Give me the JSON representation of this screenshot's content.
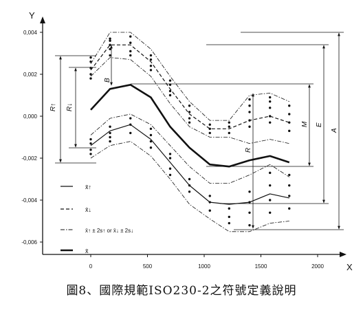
{
  "caption": "圖8、國際規範ISO230-2之符號定義說明",
  "chart_data": {
    "type": "line",
    "title": "",
    "xlabel": "X",
    "ylabel": "Y",
    "xlim": [
      -400,
      2200
    ],
    "ylim": [
      -0.0062,
      0.0042
    ],
    "x_ticks": [
      0,
      500,
      1000,
      1500,
      2000
    ],
    "x_tick_labels": [
      "0",
      "500",
      "1000",
      "1500",
      "2000"
    ],
    "y_ticks": [
      0.004,
      0.002,
      0.0,
      -0.002,
      -0.004,
      -0.006
    ],
    "y_tick_labels": [
      "0,004",
      "0,002",
      "0,000",
      "-0,002",
      "-0,004",
      "-0,006"
    ],
    "grid": false,
    "legend_position": "bottom-left",
    "positions": [
      0,
      170,
      350,
      530,
      700,
      870,
      1050,
      1220,
      1400,
      1580,
      1750
    ],
    "series": [
      {
        "name": "x̄↑",
        "style": "solid-thin",
        "values": [
          -0.0014,
          -0.0007,
          -0.0004,
          -0.0011,
          -0.0022,
          -0.0033,
          -0.0041,
          -0.0042,
          -0.0041,
          -0.0037,
          -0.0039
        ]
      },
      {
        "name": "x̄↓",
        "style": "dashed",
        "values": [
          0.0022,
          0.0034,
          0.0034,
          0.0026,
          0.0013,
          0.0001,
          -0.0006,
          -0.0006,
          -0.0002,
          0.0,
          -0.0003
        ]
      },
      {
        "name": "x̄↑ ± 2s↑ or x̄↓ ± 2s↓",
        "style": "dashdot",
        "values": [
          0.0025,
          0.004,
          0.004,
          0.0032,
          0.0019,
          0.0007,
          -0.0002,
          -0.0002,
          0.001,
          0.0011,
          0.0007
        ]
      },
      {
        "name": "",
        "style": "dashdot",
        "values": [
          0.0019,
          0.0028,
          0.0027,
          0.0019,
          0.0006,
          -0.0005,
          -0.001,
          -0.001,
          -0.0013,
          -0.0011,
          -0.0013
        ]
      },
      {
        "name": "",
        "style": "dashdot",
        "values": [
          -0.0009,
          -0.0001,
          0.0001,
          -0.0004,
          -0.0014,
          -0.0024,
          -0.0032,
          -0.0032,
          -0.0028,
          -0.0023,
          -0.0029
        ]
      },
      {
        "name": "",
        "style": "dashdot",
        "values": [
          -0.002,
          -0.0014,
          -0.0012,
          -0.0019,
          -0.003,
          -0.0042,
          -0.0049,
          -0.0055,
          -0.0055,
          -0.0051,
          -0.005
        ]
      },
      {
        "name": "x̄",
        "style": "solid-thick",
        "values": [
          0.0003,
          0.0013,
          0.0015,
          0.0009,
          -0.0005,
          -0.0015,
          -0.0023,
          -0.0024,
          -0.0021,
          -0.0019,
          -0.0022
        ]
      }
    ],
    "sample_points": [
      [
        0,
        [
          0.0028,
          0.0026,
          0.0023,
          0.002,
          0.0018,
          -0.0011,
          -0.0013,
          -0.0016,
          -0.0018
        ]
      ],
      [
        170,
        [
          0.0037,
          0.0036,
          0.0034,
          0.0032,
          0.0029,
          -0.0005,
          -0.0008,
          -0.001,
          -0.0012
        ]
      ],
      [
        350,
        [
          0.0038,
          0.0035,
          0.0031,
          0.0029,
          -0.0001,
          -0.0004,
          -0.0008
        ]
      ],
      [
        530,
        [
          0.0029,
          0.0027,
          0.0024,
          0.0022,
          -0.0006,
          -0.0009,
          -0.0012,
          -0.0015
        ]
      ],
      [
        700,
        [
          0.0017,
          0.0015,
          0.0012,
          0.001,
          -0.0018,
          -0.002,
          -0.0025,
          -0.0028
        ]
      ],
      [
        870,
        [
          0.0005,
          0.0002,
          -0.0001,
          -0.0003,
          -0.003,
          -0.0033,
          -0.0036
        ]
      ],
      [
        1050,
        [
          -0.0004,
          -0.0006,
          -0.0008,
          -0.0038,
          -0.0041,
          -0.0045
        ]
      ],
      [
        1220,
        [
          -0.0003,
          -0.0005,
          -0.0008,
          -0.0044,
          -0.0048,
          -0.0051
        ]
      ],
      [
        1400,
        [
          0.0008,
          0.0005,
          0.0002,
          -0.0002,
          -0.0005,
          -0.0036,
          -0.0041,
          -0.0046,
          -0.0052
        ]
      ],
      [
        1580,
        [
          0.0009,
          0.0007,
          0.0004,
          0.0,
          -0.0003,
          -0.0027,
          -0.0033,
          -0.004,
          -0.0046
        ]
      ],
      [
        1750,
        [
          0.0005,
          0.0001,
          -0.0003,
          -0.0007,
          -0.0028,
          -0.0033,
          -0.0038,
          -0.0044
        ]
      ]
    ],
    "annotations": [
      "R↑",
      "R↓",
      "B",
      "M",
      "E",
      "A",
      "R"
    ]
  }
}
